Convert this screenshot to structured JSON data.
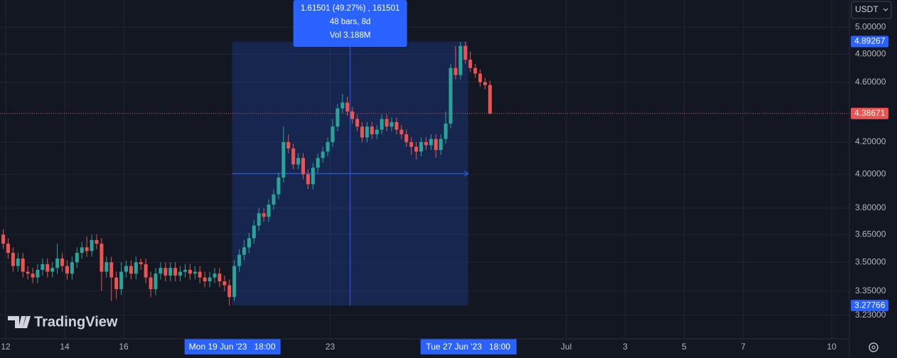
{
  "chart_data": {
    "type": "candlestick",
    "scale": "log",
    "currency": "USDT",
    "watermark": "TradingView",
    "up_color": "#26a69a",
    "down_color": "#ef5350",
    "xlim": [
      11.807,
      40.6
    ],
    "xticks": [
      12,
      14,
      16,
      23,
      {
        "value": 31,
        "label": "Jul"
      },
      {
        "value": 33,
        "label": "3"
      },
      {
        "value": 35,
        "label": "5"
      },
      {
        "value": 37,
        "label": "7"
      },
      {
        "value": 40,
        "label": "10"
      }
    ],
    "ylim": [
      3.116,
      5.211
    ],
    "yticks": [
      {
        "value": 5,
        "label": "5.00000"
      },
      {
        "value": 4.8,
        "label": "4.80000"
      },
      {
        "value": 4.6,
        "label": "4.60000"
      },
      {
        "value": 4.2,
        "label": "4.20000"
      },
      {
        "value": 4,
        "label": "4.00000"
      },
      {
        "value": 3.8,
        "label": "3.80000"
      },
      {
        "value": 3.65,
        "label": "3.65000"
      },
      {
        "value": 3.5,
        "label": "3.50000"
      },
      {
        "value": 3.35,
        "label": "3.35000"
      },
      {
        "value": 3.23,
        "label": "3.23000"
      }
    ],
    "grid": true,
    "x": [
      11.917,
      12.083,
      12.25,
      12.417,
      12.583,
      12.75,
      12.917,
      13.083,
      13.25,
      13.417,
      13.583,
      13.75,
      13.917,
      14.083,
      14.25,
      14.417,
      14.583,
      14.75,
      14.917,
      15.083,
      15.25,
      15.417,
      15.583,
      15.75,
      15.917,
      16.083,
      16.25,
      16.417,
      16.583,
      16.75,
      16.917,
      17.083,
      17.25,
      17.417,
      17.583,
      17.75,
      17.917,
      18.083,
      18.25,
      18.417,
      18.583,
      18.75,
      18.917,
      19.083,
      19.25,
      19.417,
      19.583,
      19.75,
      19.917,
      20.083,
      20.25,
      20.417,
      20.583,
      20.75,
      20.917,
      21.083,
      21.25,
      21.417,
      21.583,
      21.75,
      21.917,
      22.083,
      22.25,
      22.417,
      22.583,
      22.75,
      22.917,
      23.083,
      23.25,
      23.417,
      23.583,
      23.75,
      23.917,
      24.083,
      24.25,
      24.417,
      24.583,
      24.75,
      24.917,
      25.083,
      25.25,
      25.417,
      25.583,
      25.75,
      25.917,
      26.083,
      26.25,
      26.417,
      26.583,
      26.75,
      26.917,
      27.083,
      27.25,
      27.417,
      27.583,
      27.75,
      27.917,
      28.083,
      28.25,
      28.417
    ],
    "open": [
      3.65,
      3.6,
      3.55,
      3.48,
      3.52,
      3.45,
      3.44,
      3.42,
      3.46,
      3.49,
      3.45,
      3.47,
      3.52,
      3.48,
      3.44,
      3.5,
      3.55,
      3.58,
      3.56,
      3.62,
      3.6,
      3.45,
      3.5,
      3.42,
      3.36,
      3.45,
      3.48,
      3.44,
      3.5,
      3.49,
      3.42,
      3.36,
      3.44,
      3.47,
      3.43,
      3.47,
      3.43,
      3.45,
      3.46,
      3.44,
      3.45,
      3.42,
      3.4,
      3.42,
      3.44,
      3.4,
      3.38,
      3.32,
      3.48,
      3.54,
      3.58,
      3.63,
      3.7,
      3.77,
      3.75,
      3.82,
      3.88,
      3.98,
      4.2,
      4.16,
      4.06,
      4.1,
      4.0,
      3.94,
      4.04,
      4.1,
      4.14,
      4.2,
      4.3,
      4.42,
      4.46,
      4.4,
      4.35,
      4.3,
      4.23,
      4.3,
      4.25,
      4.28,
      4.35,
      4.3,
      4.33,
      4.28,
      4.25,
      4.2,
      4.17,
      4.14,
      4.2,
      4.18,
      4.22,
      4.15,
      4.22,
      4.32,
      4.7,
      4.65,
      4.86,
      4.76,
      4.7,
      4.66,
      4.6,
      4.58
    ],
    "high": [
      3.68,
      3.63,
      3.58,
      3.55,
      3.55,
      3.48,
      3.47,
      3.49,
      3.52,
      3.52,
      3.5,
      3.6,
      3.55,
      3.51,
      3.53,
      3.58,
      3.61,
      3.64,
      3.65,
      3.65,
      3.63,
      3.53,
      3.53,
      3.45,
      3.5,
      3.51,
      3.51,
      3.53,
      3.52,
      3.52,
      3.45,
      3.47,
      3.5,
      3.5,
      3.5,
      3.5,
      3.48,
      3.49,
      3.49,
      3.48,
      3.48,
      3.45,
      3.45,
      3.47,
      3.47,
      3.43,
      3.41,
      3.51,
      3.57,
      3.62,
      3.66,
      3.73,
      3.8,
      3.8,
      3.85,
      3.91,
      4.01,
      4.3,
      4.25,
      4.19,
      4.13,
      4.13,
      4.03,
      4.07,
      4.13,
      4.17,
      4.23,
      4.35,
      4.45,
      4.52,
      4.5,
      4.43,
      4.38,
      4.33,
      4.33,
      4.33,
      4.31,
      4.38,
      4.38,
      4.36,
      4.36,
      4.31,
      4.28,
      4.23,
      4.2,
      4.23,
      4.23,
      4.25,
      4.25,
      4.25,
      4.4,
      4.73,
      4.86,
      4.89,
      4.89267,
      4.82,
      4.73,
      4.69,
      4.63,
      4.61
    ],
    "low": [
      3.57,
      3.52,
      3.45,
      3.45,
      3.42,
      3.41,
      3.39,
      3.39,
      3.43,
      3.42,
      3.42,
      3.44,
      3.45,
      3.41,
      3.41,
      3.47,
      3.52,
      3.53,
      3.53,
      3.57,
      3.35,
      3.42,
      3.3,
      3.31,
      3.33,
      3.42,
      3.41,
      3.41,
      3.46,
      3.39,
      3.32,
      3.33,
      3.41,
      3.4,
      3.4,
      3.4,
      3.4,
      3.42,
      3.41,
      3.41,
      3.39,
      3.37,
      3.37,
      3.39,
      3.37,
      3.35,
      3.27766,
      3.3,
      3.45,
      3.51,
      3.55,
      3.6,
      3.67,
      3.72,
      3.72,
      3.79,
      3.85,
      3.95,
      4.13,
      4.03,
      4.03,
      3.97,
      3.91,
      3.91,
      4.01,
      4.07,
      4.11,
      4.17,
      4.27,
      4.39,
      4.37,
      4.32,
      4.27,
      4.2,
      4.2,
      4.22,
      4.22,
      4.25,
      4.27,
      4.27,
      4.25,
      4.22,
      4.17,
      4.12,
      4.09,
      4.11,
      4.15,
      4.15,
      4.1,
      4.12,
      4.19,
      4.29,
      4.62,
      4.62,
      4.73,
      4.67,
      4.63,
      4.57,
      4.55,
      4.38
    ],
    "close": [
      3.6,
      3.55,
      3.48,
      3.52,
      3.45,
      3.44,
      3.42,
      3.46,
      3.49,
      3.45,
      3.47,
      3.52,
      3.48,
      3.44,
      3.5,
      3.55,
      3.58,
      3.56,
      3.62,
      3.6,
      3.45,
      3.5,
      3.42,
      3.36,
      3.45,
      3.48,
      3.44,
      3.5,
      3.49,
      3.42,
      3.36,
      3.44,
      3.47,
      3.43,
      3.47,
      3.43,
      3.45,
      3.46,
      3.44,
      3.45,
      3.42,
      3.4,
      3.42,
      3.44,
      3.4,
      3.38,
      3.32,
      3.48,
      3.54,
      3.58,
      3.63,
      3.7,
      3.77,
      3.75,
      3.82,
      3.88,
      3.98,
      4.2,
      4.16,
      4.06,
      4.1,
      4.0,
      3.94,
      4.04,
      4.1,
      4.14,
      4.2,
      4.3,
      4.42,
      4.46,
      4.4,
      4.35,
      4.3,
      4.23,
      4.3,
      4.25,
      4.28,
      4.35,
      4.3,
      4.33,
      4.28,
      4.25,
      4.2,
      4.17,
      4.14,
      4.2,
      4.18,
      4.22,
      4.15,
      4.22,
      4.32,
      4.7,
      4.65,
      4.86,
      4.76,
      4.7,
      4.66,
      4.6,
      4.58,
      4.38671
    ],
    "measure": {
      "line1": "1.61501 (49.27%) , 161501",
      "line2": "48 bars, 8d",
      "line3": "Vol 3.188M",
      "start_label": "Mon 19 Jun '23   18:00",
      "end_label": "Tue 27 Jun '23   18:00"
    }
  }
}
